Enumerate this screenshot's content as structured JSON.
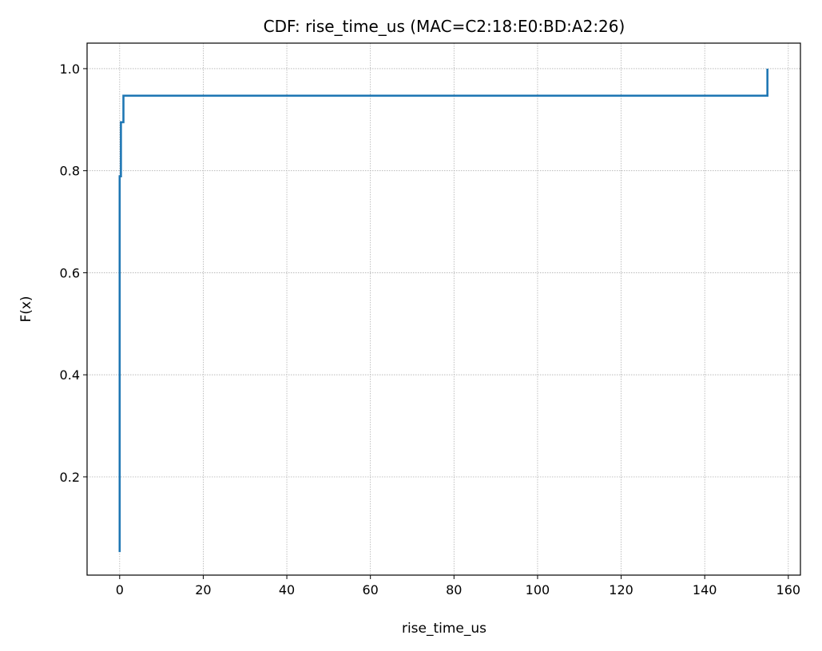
{
  "chart_data": {
    "type": "line",
    "drawstyle": "steps-post",
    "title": "CDF: rise_time_us (MAC=C2:18:E0:BD:A2:26)",
    "xlabel": "rise_time_us",
    "ylabel": "F(x)",
    "x": [
      0,
      0,
      0.3,
      0.9,
      155
    ],
    "series": [
      {
        "color": "#1f77b4",
        "values": [
          0.0526,
          0.789,
          0.895,
          0.947,
          1.0
        ]
      }
    ],
    "xlim": [
      -7.8,
      162.9
    ],
    "ylim": [
      0.0074,
      1.05
    ],
    "xticks": [
      0,
      20,
      40,
      60,
      80,
      100,
      120,
      140,
      160
    ],
    "yticks": [
      0.2,
      0.4,
      0.6,
      0.8,
      {
        "value": 1.0,
        "label": "1.0"
      }
    ],
    "grid": true
  }
}
